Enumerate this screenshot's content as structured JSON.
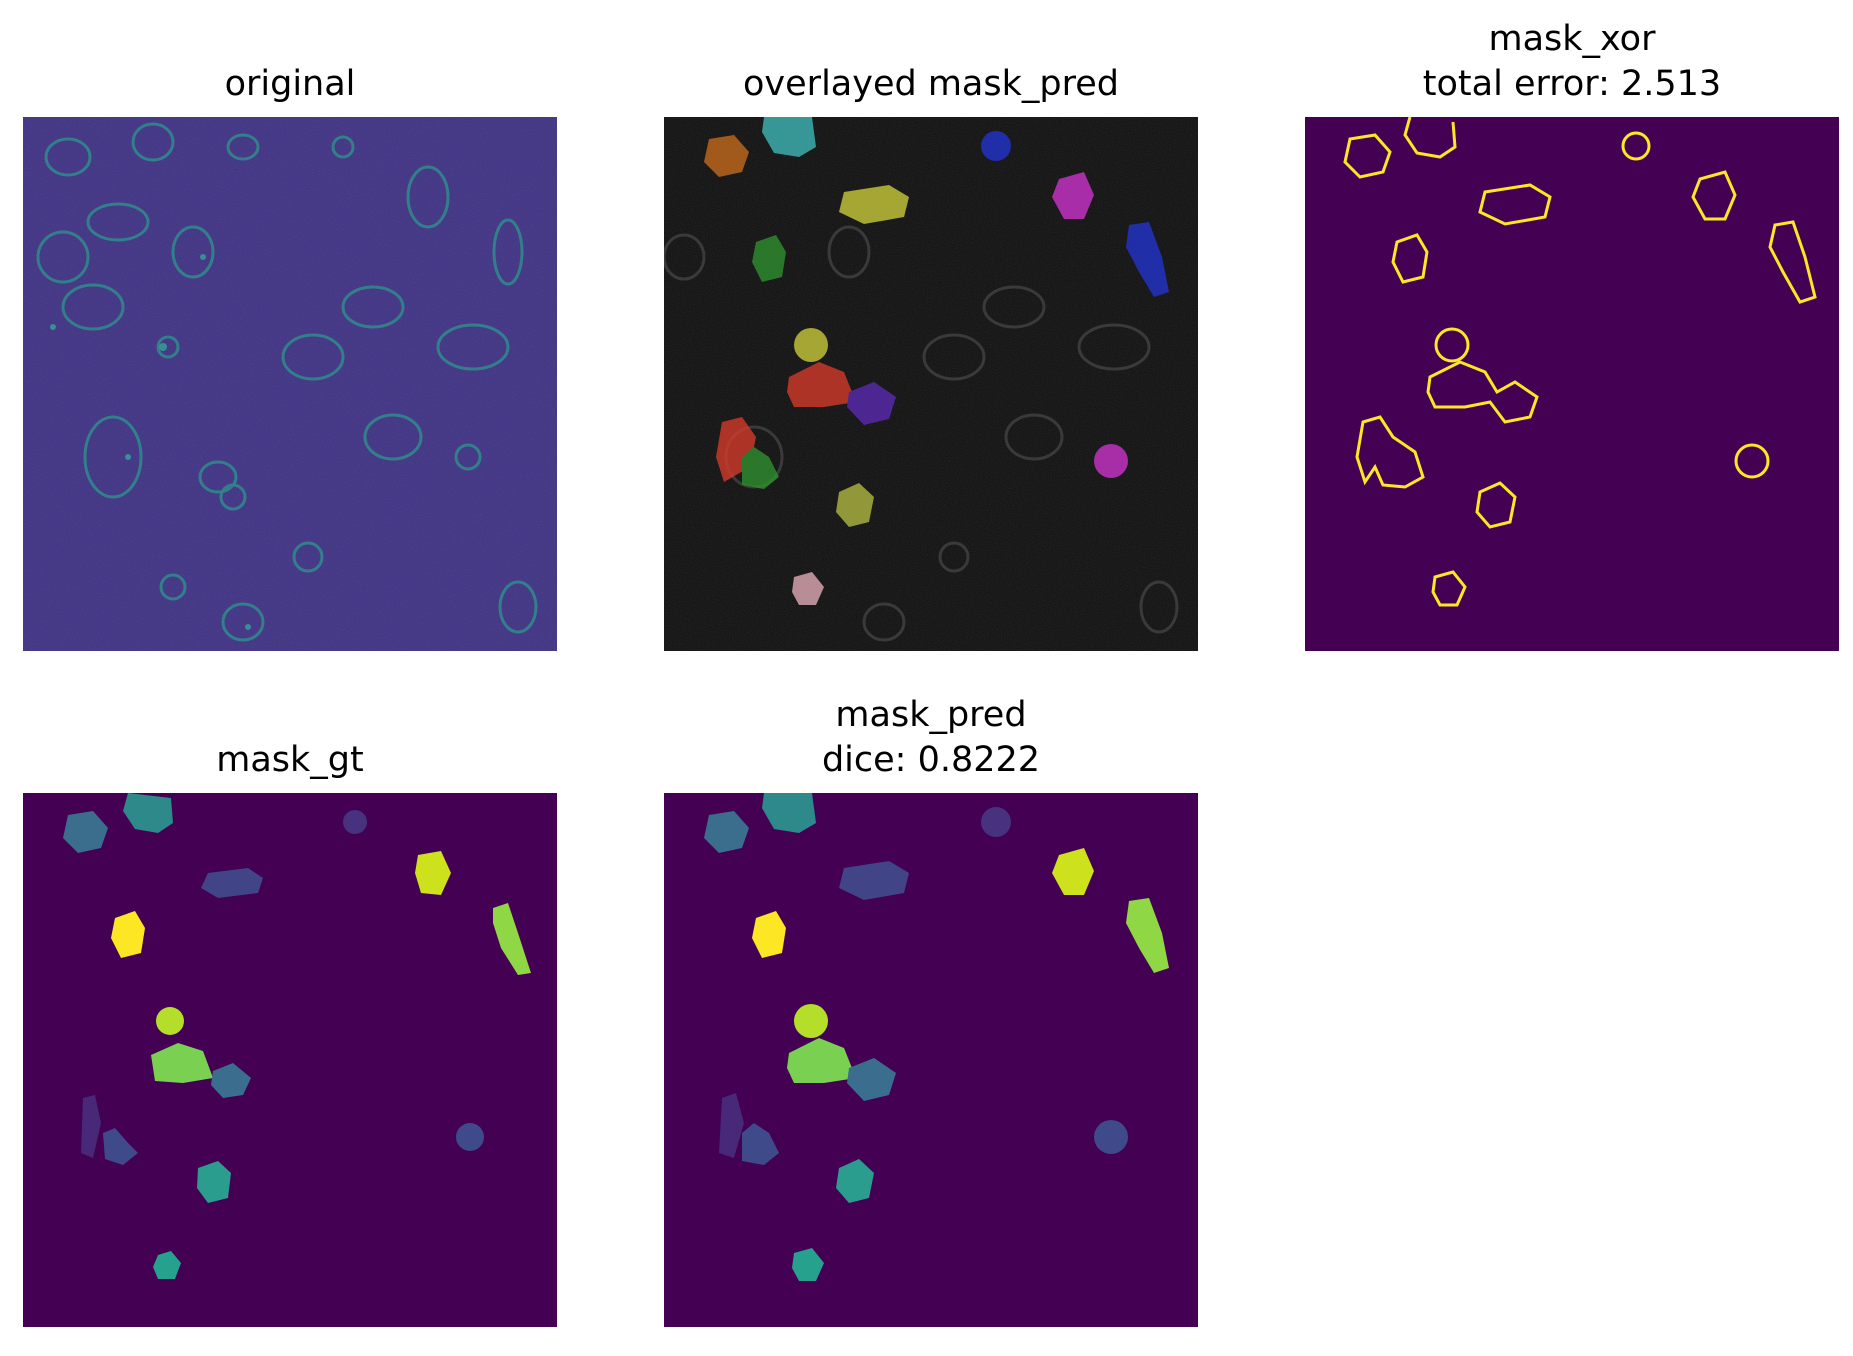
{
  "panels": {
    "original": {
      "title": "original"
    },
    "overlay": {
      "title": "overlayed mask_pred"
    },
    "xor": {
      "title_line1": "mask_xor",
      "title_line2": "total error: 2.513"
    },
    "gt": {
      "title": "mask_gt"
    },
    "pred": {
      "title_line1": "mask_pred",
      "title_line2": "dice: 0.8222"
    }
  },
  "colors": {
    "viridis_bg": "#440154",
    "xor_bg": "#440154",
    "xor_outline": "#fde725",
    "overlay_bg": "#050505",
    "original_bg": "#3b2a7a"
  }
}
